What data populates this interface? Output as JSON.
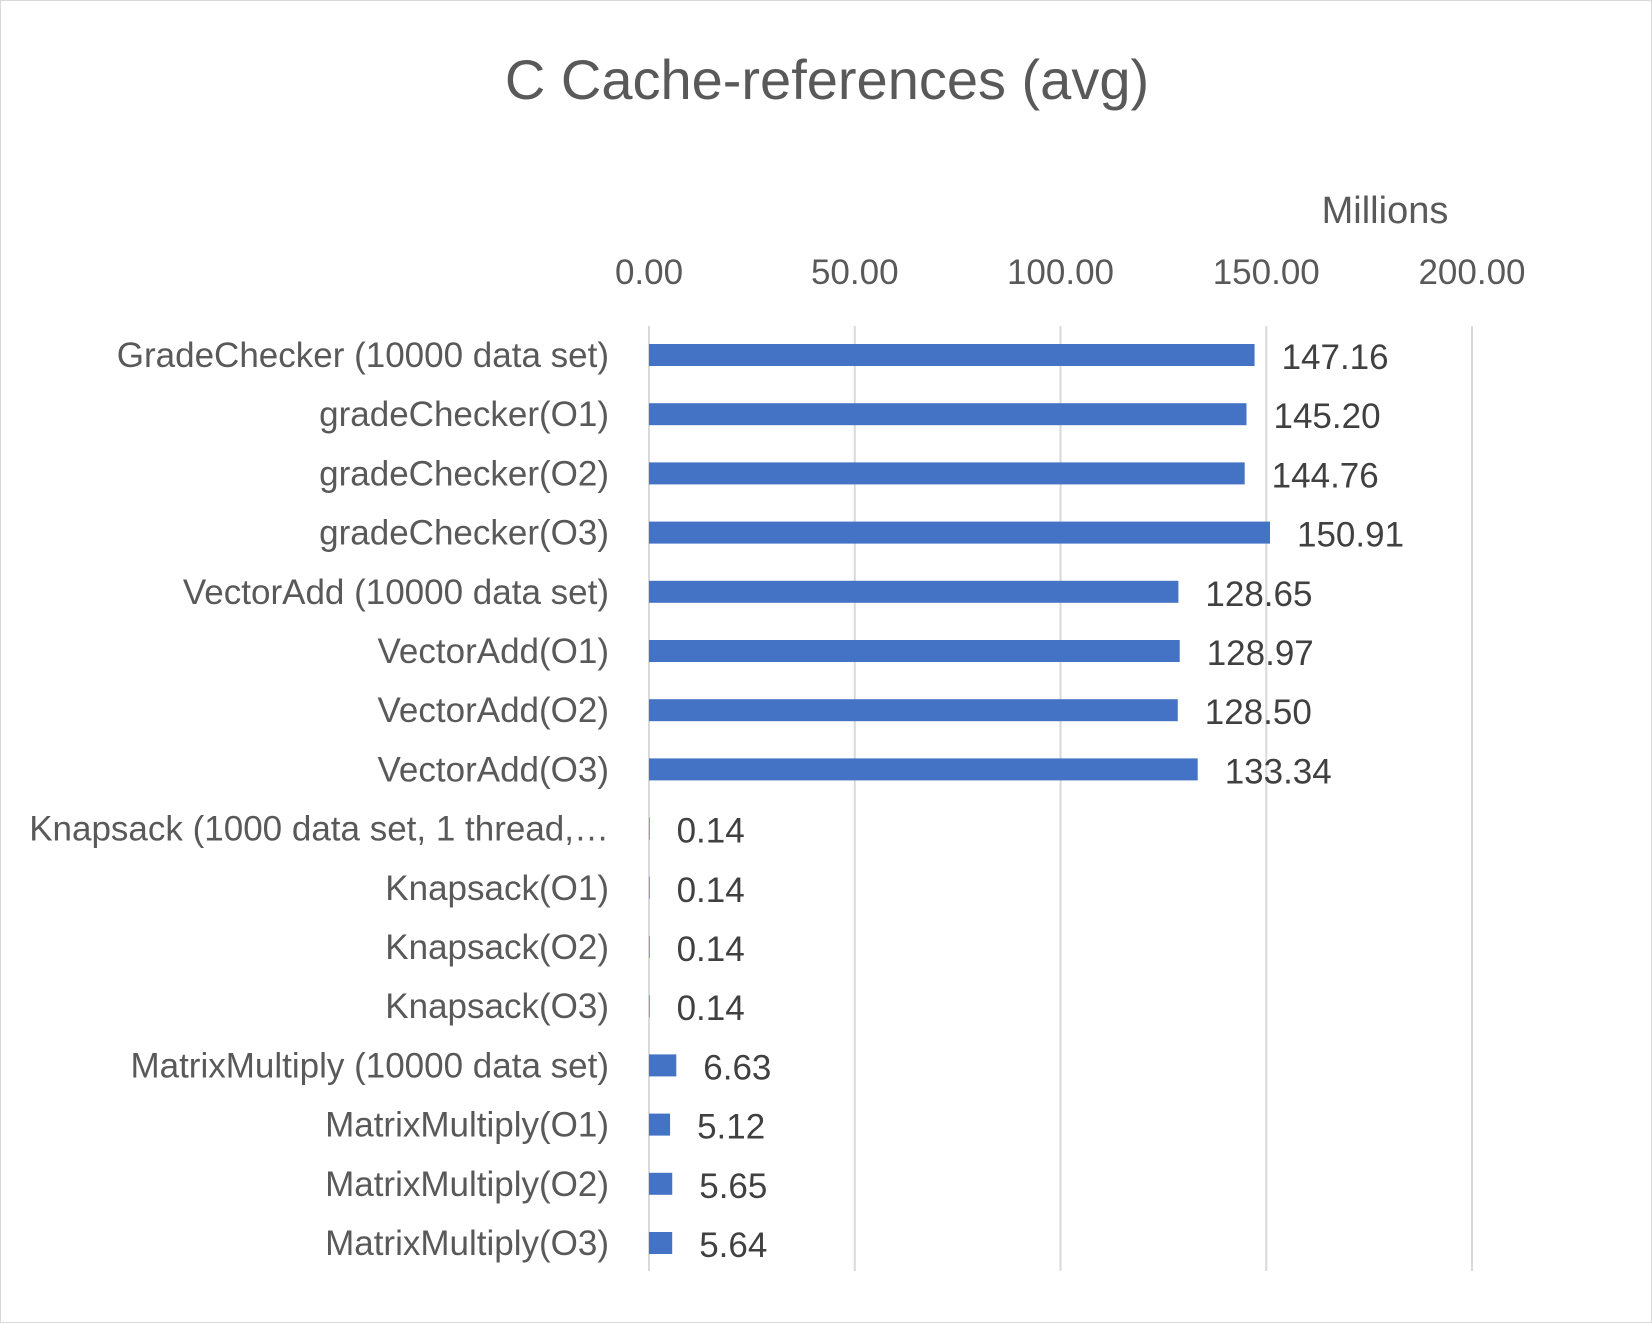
{
  "chart_data": {
    "type": "bar",
    "orientation": "horizontal",
    "title": "C Cache-references (avg)",
    "unit_label": "Millions",
    "xlim": [
      0,
      200
    ],
    "x_ticks": [
      "0.00",
      "50.00",
      "100.00",
      "150.00",
      "200.00"
    ],
    "x_tick_values": [
      0,
      50,
      100,
      150,
      200
    ],
    "x_axis_position": "top",
    "grid": true,
    "legend": "none",
    "categories": [
      "GradeChecker (10000 data set)",
      "gradeChecker(O1)",
      "gradeChecker(O2)",
      "gradeChecker(O3)",
      "VectorAdd (10000 data set)",
      "VectorAdd(O1)",
      "VectorAdd(O2)",
      "VectorAdd(O3)",
      "Knapsack (1000 data set, 1 thread,…",
      "Knapsack(O1)",
      "Knapsack(O2)",
      "Knapsack(O3)",
      "MatrixMultiply (10000 data set)",
      "MatrixMultiply(O1)",
      "MatrixMultiply(O2)",
      "MatrixMultiply(O3)"
    ],
    "values": [
      147.16,
      145.2,
      144.76,
      150.91,
      128.65,
      128.97,
      128.5,
      133.34,
      0.14,
      0.14,
      0.14,
      0.14,
      6.63,
      5.12,
      5.65,
      5.64
    ],
    "value_labels": [
      "147.16",
      "145.20",
      "144.76",
      "150.91",
      "128.65",
      "128.97",
      "128.50",
      "133.34",
      "0.14",
      "0.14",
      "0.14",
      "0.14",
      "6.63",
      "5.12",
      "5.65",
      "5.64"
    ],
    "bar_color": "#4472c4",
    "grid_color": "#d9d9d9"
  }
}
